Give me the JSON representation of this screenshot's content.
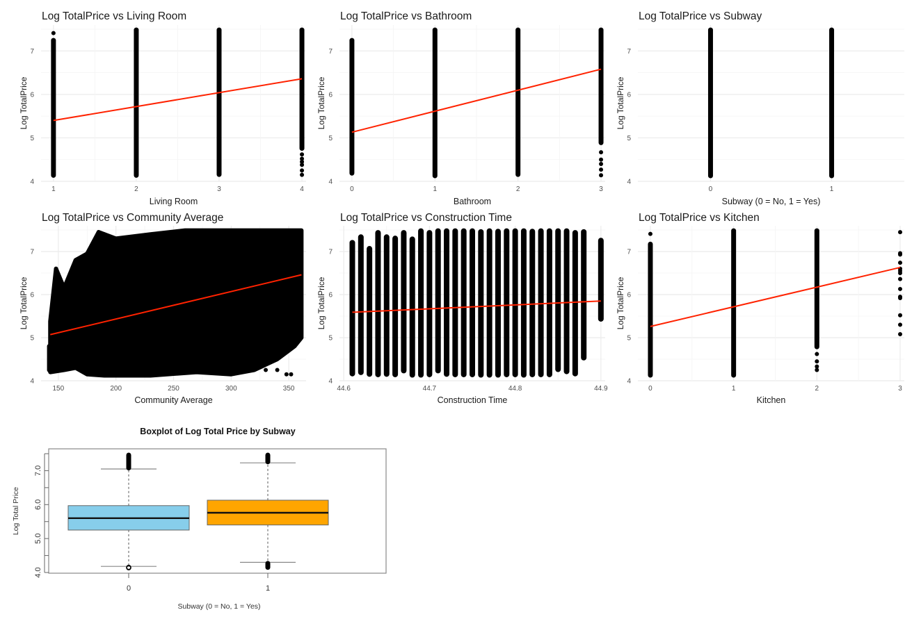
{
  "chart_data": [
    {
      "type": "scatter",
      "id": "living_room",
      "title": "Log TotalPrice vs Living Room",
      "xlabel": "Living Room",
      "ylabel": "Log TotalPrice",
      "xticks": [
        "1",
        "2",
        "3",
        "4"
      ],
      "yticks": [
        "4",
        "5",
        "6",
        "7"
      ],
      "xlim": [
        0.85,
        4.05
      ],
      "ylim": [
        4.0,
        7.5
      ],
      "grid": true,
      "columns": [
        {
          "x": 1,
          "ymin": 4.13,
          "ymax": 7.25,
          "extra_points": [
            7.41
          ]
        },
        {
          "x": 2,
          "ymin": 4.13,
          "ymax": 7.49,
          "extra_points": []
        },
        {
          "x": 3,
          "ymin": 4.15,
          "ymax": 7.49,
          "extra_points": []
        },
        {
          "x": 4,
          "ymin": 4.75,
          "ymax": 7.49,
          "extra_points": [
            4.62,
            4.52,
            4.45,
            4.38,
            4.25,
            4.15
          ]
        }
      ],
      "fit_line": {
        "x": [
          1,
          4
        ],
        "y": [
          5.4,
          6.36
        ],
        "color": "#ff2200"
      }
    },
    {
      "type": "scatter",
      "id": "bathroom",
      "title": "Log TotalPrice vs Bathroom",
      "xlabel": "Bathroom",
      "ylabel": "Log TotalPrice",
      "xticks": [
        "0",
        "1",
        "2",
        "3"
      ],
      "yticks": [
        "4",
        "5",
        "6",
        "7"
      ],
      "xlim": [
        -0.15,
        3.05
      ],
      "ylim": [
        4.0,
        7.5
      ],
      "grid": true,
      "columns": [
        {
          "x": 0,
          "ymin": 4.18,
          "ymax": 7.25,
          "extra_points": []
        },
        {
          "x": 1,
          "ymin": 4.12,
          "ymax": 7.49,
          "extra_points": []
        },
        {
          "x": 2,
          "ymin": 4.15,
          "ymax": 7.49,
          "extra_points": []
        },
        {
          "x": 3,
          "ymin": 4.88,
          "ymax": 7.49,
          "extra_points": [
            4.67,
            4.5,
            4.4,
            4.27,
            4.14
          ]
        }
      ],
      "fit_line": {
        "x": [
          0,
          3
        ],
        "y": [
          5.13,
          6.58
        ],
        "color": "#ff2200"
      }
    },
    {
      "type": "scatter",
      "id": "subway",
      "title": "Log TotalPrice vs Subway",
      "xlabel": "Subway (0 = No, 1 = Yes)",
      "ylabel": "Log TotalPrice",
      "xticks": [
        "0",
        "1"
      ],
      "yticks": [
        "4",
        "5",
        "6",
        "7"
      ],
      "xlim": [
        -0.6,
        1.6
      ],
      "ylim": [
        4.0,
        7.5
      ],
      "grid": true,
      "columns": [
        {
          "x": 0,
          "ymin": 4.12,
          "ymax": 7.49,
          "extra_points": []
        },
        {
          "x": 1,
          "ymin": 4.12,
          "ymax": 7.49,
          "extra_points": []
        }
      ],
      "fit_line": null
    },
    {
      "type": "scatter",
      "id": "community_average",
      "title": "Log TotalPrice vs Community Average",
      "xlabel": "Community Average",
      "ylabel": "Log TotalPrice",
      "xticks": [
        "150",
        "200",
        "250",
        "300",
        "350"
      ],
      "yticks": [
        "4",
        "5",
        "6",
        "7"
      ],
      "xlim": [
        135,
        365
      ],
      "ylim": [
        4.0,
        7.5
      ],
      "grid": true,
      "cloud": {
        "x_range": [
          143,
          361
        ],
        "upper_envelope": [
          [
            143,
            5.38
          ],
          [
            148,
            6.6
          ],
          [
            155,
            6.15
          ],
          [
            165,
            6.8
          ],
          [
            175,
            6.95
          ],
          [
            185,
            7.45
          ],
          [
            200,
            7.3
          ],
          [
            230,
            7.4
          ],
          [
            260,
            7.49
          ],
          [
            361,
            7.49
          ]
        ],
        "lower_envelope": [
          [
            143,
            4.2
          ],
          [
            155,
            4.25
          ],
          [
            165,
            4.3
          ],
          [
            175,
            4.15
          ],
          [
            190,
            4.12
          ],
          [
            230,
            4.12
          ],
          [
            270,
            4.2
          ],
          [
            300,
            4.15
          ],
          [
            320,
            4.25
          ],
          [
            340,
            4.5
          ],
          [
            355,
            4.8
          ],
          [
            361,
            5.0
          ]
        ]
      },
      "fit_line": {
        "x": [
          143,
          361
        ],
        "y": [
          5.07,
          6.46
        ],
        "color": "#ff2200"
      }
    },
    {
      "type": "scatter",
      "id": "construction_time",
      "title": "Log TotalPrice vs Construction Time",
      "xlabel": "Construction Time",
      "ylabel": "Log TotalPrice",
      "xticks": [
        "44.6",
        "44.7",
        "44.8",
        "44.9"
      ],
      "yticks": [
        "4",
        "5",
        "6",
        "7"
      ],
      "xlim": [
        44.595,
        44.905
      ],
      "ylim": [
        4.0,
        7.5
      ],
      "grid": true,
      "columns": [
        {
          "x": 44.61,
          "ymin": 4.15,
          "ymax": 7.22
        },
        {
          "x": 44.62,
          "ymin": 4.18,
          "ymax": 7.35
        },
        {
          "x": 44.63,
          "ymin": 4.14,
          "ymax": 7.08
        },
        {
          "x": 44.64,
          "ymin": 4.13,
          "ymax": 7.45
        },
        {
          "x": 44.65,
          "ymin": 4.14,
          "ymax": 7.35
        },
        {
          "x": 44.66,
          "ymin": 4.13,
          "ymax": 7.32
        },
        {
          "x": 44.67,
          "ymin": 4.22,
          "ymax": 7.45
        },
        {
          "x": 44.68,
          "ymin": 4.12,
          "ymax": 7.3
        },
        {
          "x": 44.69,
          "ymin": 4.12,
          "ymax": 7.49
        },
        {
          "x": 44.7,
          "ymin": 4.13,
          "ymax": 7.45
        },
        {
          "x": 44.71,
          "ymin": 4.22,
          "ymax": 7.49
        },
        {
          "x": 44.72,
          "ymin": 4.14,
          "ymax": 7.49
        },
        {
          "x": 44.73,
          "ymin": 4.13,
          "ymax": 7.49
        },
        {
          "x": 44.74,
          "ymin": 4.13,
          "ymax": 7.49
        },
        {
          "x": 44.75,
          "ymin": 4.13,
          "ymax": 7.49
        },
        {
          "x": 44.76,
          "ymin": 4.12,
          "ymax": 7.47
        },
        {
          "x": 44.77,
          "ymin": 4.12,
          "ymax": 7.49
        },
        {
          "x": 44.78,
          "ymin": 4.12,
          "ymax": 7.48
        },
        {
          "x": 44.79,
          "ymin": 4.13,
          "ymax": 7.49
        },
        {
          "x": 44.8,
          "ymin": 4.13,
          "ymax": 7.49
        },
        {
          "x": 44.81,
          "ymin": 4.12,
          "ymax": 7.49
        },
        {
          "x": 44.82,
          "ymin": 4.13,
          "ymax": 7.48
        },
        {
          "x": 44.83,
          "ymin": 4.13,
          "ymax": 7.49
        },
        {
          "x": 44.84,
          "ymin": 4.13,
          "ymax": 7.49
        },
        {
          "x": 44.85,
          "ymin": 4.25,
          "ymax": 7.49
        },
        {
          "x": 44.86,
          "ymin": 4.2,
          "ymax": 7.49
        },
        {
          "x": 44.87,
          "ymin": 4.15,
          "ymax": 7.45
        },
        {
          "x": 44.88,
          "ymin": 4.52,
          "ymax": 7.47
        },
        {
          "x": 44.9,
          "ymin": 5.42,
          "ymax": 7.27
        }
      ],
      "fit_line": {
        "x": [
          44.61,
          44.9
        ],
        "y": [
          5.59,
          5.85
        ],
        "color": "#ff2200"
      }
    },
    {
      "type": "scatter",
      "id": "kitchen",
      "title": "Log TotalPrice vs Kitchen",
      "xlabel": "Kitchen",
      "ylabel": "Log TotalPrice",
      "xticks": [
        "0",
        "1",
        "2",
        "3"
      ],
      "yticks": [
        "4",
        "5",
        "6",
        "7"
      ],
      "xlim": [
        -0.15,
        3.05
      ],
      "ylim": [
        4.0,
        7.5
      ],
      "grid": true,
      "columns": [
        {
          "x": 0,
          "ymin": 4.12,
          "ymax": 7.18,
          "extra_points": [
            7.41
          ]
        },
        {
          "x": 1,
          "ymin": 4.12,
          "ymax": 7.49,
          "extra_points": []
        },
        {
          "x": 2,
          "ymin": 4.78,
          "ymax": 7.49,
          "extra_points": [
            4.62,
            4.45,
            4.33,
            4.25
          ]
        },
        {
          "x": 3,
          "ymin": null,
          "ymax": null,
          "extra_points": [
            7.45,
            6.96,
            6.93,
            6.74,
            6.6,
            6.55,
            6.5,
            6.36,
            6.13,
            5.95,
            5.92,
            5.52,
            5.3,
            5.08
          ]
        }
      ],
      "fit_line": {
        "x": [
          0,
          3
        ],
        "y": [
          5.26,
          6.63
        ],
        "color": "#ff2200"
      }
    },
    {
      "type": "boxplot",
      "id": "boxplot_subway",
      "title": "Boxplot of Log Total Price by Subway",
      "xlabel": "Subway (0 = No, 1 = Yes)",
      "ylabel": "Log Total Price",
      "categories": [
        "0",
        "1"
      ],
      "yticks": [
        "4.0",
        "5.0",
        "6.0",
        "7.0"
      ],
      "ylim": [
        4.0,
        7.5
      ],
      "boxes": [
        {
          "category": "0",
          "whisker_low": 4.18,
          "q1": 5.25,
          "median": 5.6,
          "q3": 5.97,
          "whisker_high": 7.05,
          "outliers_low": [
            4.15,
            4.14
          ],
          "outliers_high_range": [
            7.05,
            7.49
          ],
          "color": "#87ceeb"
        },
        {
          "category": "1",
          "whisker_low": 4.3,
          "q1": 5.4,
          "median": 5.76,
          "q3": 6.13,
          "whisker_high": 7.23,
          "outliers_low_range": [
            4.12,
            4.3
          ],
          "outliers_high_range": [
            7.23,
            7.49
          ],
          "color": "#ffa500"
        }
      ]
    }
  ]
}
